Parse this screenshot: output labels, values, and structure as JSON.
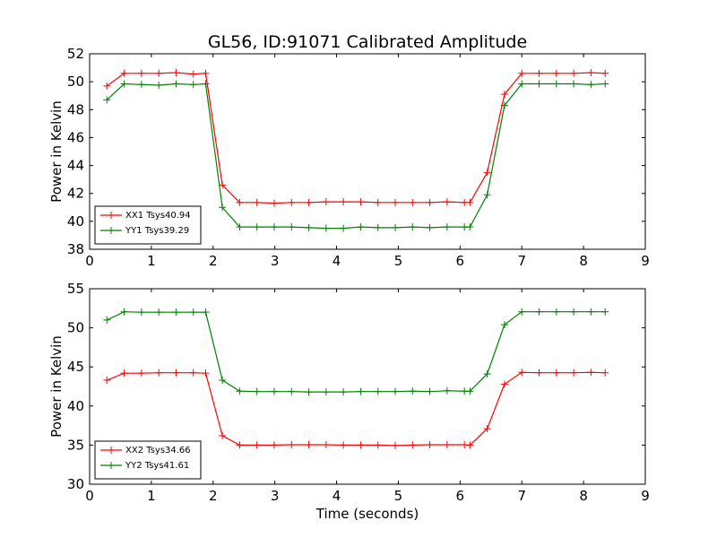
{
  "figure": {
    "title": "GL56, ID:91071 Calibrated Amplitude",
    "xlabel": "Time (seconds)"
  },
  "chart_data": [
    {
      "type": "line",
      "title": "GL56, ID:91071 Calibrated Amplitude",
      "xlabel": "",
      "ylabel": "Power in Kelvin",
      "xlim": [
        0,
        9
      ],
      "ylim": [
        38,
        52
      ],
      "xticks": [
        0,
        1,
        2,
        3,
        4,
        5,
        6,
        7,
        8,
        9
      ],
      "yticks": [
        38,
        40,
        42,
        44,
        46,
        48,
        50,
        52
      ],
      "legend_position": "lower-left",
      "grid": false,
      "series": [
        {
          "name": "XX1 Tsys40.94",
          "color": "#ff0000",
          "marker": "plus",
          "x": [
            0.28,
            0.56,
            0.84,
            1.12,
            1.4,
            1.68,
            1.88,
            2.15,
            2.43,
            2.71,
            2.99,
            3.27,
            3.55,
            3.83,
            4.11,
            4.39,
            4.67,
            4.95,
            5.23,
            5.51,
            5.79,
            6.07,
            6.16,
            6.44,
            6.72,
            7.0,
            7.28,
            7.56,
            7.84,
            8.12,
            8.35
          ],
          "y": [
            49.7,
            50.6,
            50.6,
            50.6,
            50.65,
            50.55,
            50.6,
            42.6,
            41.35,
            41.35,
            41.3,
            41.35,
            41.35,
            41.4,
            41.4,
            41.4,
            41.35,
            41.35,
            41.35,
            41.35,
            41.4,
            41.35,
            41.35,
            43.5,
            49.1,
            50.6,
            50.6,
            50.6,
            50.6,
            50.65,
            50.6
          ]
        },
        {
          "name": "YY1 Tsys39.29",
          "color": "#008000",
          "marker": "plus",
          "x": [
            0.28,
            0.56,
            0.84,
            1.12,
            1.4,
            1.68,
            1.88,
            2.15,
            2.43,
            2.71,
            2.99,
            3.27,
            3.55,
            3.83,
            4.11,
            4.39,
            4.67,
            4.95,
            5.23,
            5.51,
            5.79,
            6.07,
            6.16,
            6.44,
            6.72,
            7.0,
            7.28,
            7.56,
            7.84,
            8.12,
            8.35
          ],
          "y": [
            48.7,
            49.85,
            49.8,
            49.75,
            49.85,
            49.8,
            49.85,
            41.0,
            39.6,
            39.6,
            39.6,
            39.6,
            39.55,
            39.5,
            39.5,
            39.6,
            39.55,
            39.55,
            39.6,
            39.55,
            39.6,
            39.6,
            39.6,
            41.9,
            48.3,
            49.85,
            49.85,
            49.85,
            49.85,
            49.8,
            49.85
          ]
        }
      ]
    },
    {
      "type": "line",
      "title": "",
      "xlabel": "Time (seconds)",
      "ylabel": "Power in Kelvin",
      "xlim": [
        0,
        9
      ],
      "ylim": [
        30,
        55
      ],
      "xticks": [
        0,
        1,
        2,
        3,
        4,
        5,
        6,
        7,
        8,
        9
      ],
      "yticks": [
        30,
        35,
        40,
        45,
        50,
        55
      ],
      "legend_position": "lower-left",
      "grid": false,
      "series": [
        {
          "name": "XX2 Tsys34.66",
          "color": "#ff0000",
          "marker": "plus",
          "x": [
            0.28,
            0.56,
            0.84,
            1.12,
            1.4,
            1.68,
            1.88,
            2.15,
            2.43,
            2.71,
            2.99,
            3.27,
            3.55,
            3.83,
            4.11,
            4.39,
            4.67,
            4.95,
            5.23,
            5.51,
            5.79,
            6.07,
            6.16,
            6.44,
            6.72,
            7.0,
            7.28,
            7.56,
            7.84,
            8.12,
            8.35
          ],
          "y": [
            43.3,
            44.2,
            44.2,
            44.25,
            44.25,
            44.25,
            44.2,
            36.2,
            35.0,
            35.0,
            35.0,
            35.05,
            35.05,
            35.05,
            35.0,
            35.0,
            35.0,
            34.95,
            35.0,
            35.05,
            35.05,
            35.05,
            35.0,
            37.1,
            42.8,
            44.3,
            44.25,
            44.25,
            44.25,
            44.3,
            44.25
          ]
        },
        {
          "name": "YY2 Tsys41.61",
          "color": "#008000",
          "marker": "plus",
          "x": [
            0.28,
            0.56,
            0.84,
            1.12,
            1.4,
            1.68,
            1.88,
            2.15,
            2.43,
            2.71,
            2.99,
            3.27,
            3.55,
            3.83,
            4.11,
            4.39,
            4.67,
            4.95,
            5.23,
            5.51,
            5.79,
            6.07,
            6.16,
            6.44,
            6.72,
            7.0,
            7.28,
            7.56,
            7.84,
            8.12,
            8.35
          ],
          "y": [
            51.0,
            52.05,
            52.0,
            52.0,
            52.0,
            52.0,
            52.0,
            43.3,
            41.9,
            41.85,
            41.85,
            41.85,
            41.8,
            41.8,
            41.8,
            41.85,
            41.85,
            41.85,
            41.9,
            41.85,
            41.95,
            41.9,
            41.9,
            44.1,
            50.4,
            52.05,
            52.05,
            52.05,
            52.05,
            52.05,
            52.05
          ]
        }
      ]
    }
  ]
}
